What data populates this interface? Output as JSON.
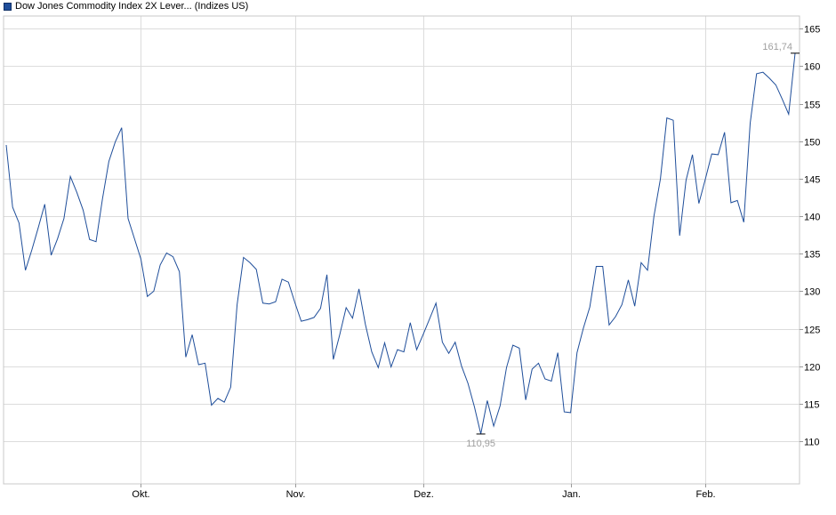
{
  "legend": {
    "label": "Dow Jones Commodity Index 2X Lever... (Indizes US)",
    "color": "#1f4e9a"
  },
  "chart_data": {
    "type": "line",
    "series": [
      {
        "name": "Dow Jones Commodity Index 2X Lever... (Indizes US)",
        "color": "#1f4e9a",
        "values": [
          149.5,
          141.2,
          139.1,
          132.8,
          135.5,
          138.5,
          141.6,
          134.8,
          137.0,
          139.7,
          145.3,
          143.2,
          140.8,
          136.9,
          136.6,
          142.3,
          147.3,
          149.9,
          151.8,
          139.7,
          137.0,
          134.3,
          129.3,
          130.0,
          133.5,
          135.1,
          134.6,
          132.6,
          121.2,
          124.2,
          120.2,
          120.4,
          114.8,
          115.7,
          115.2,
          117.2,
          128.2,
          134.5,
          133.8,
          132.9,
          128.4,
          128.3,
          128.6,
          131.6,
          131.2,
          128.5,
          126.0,
          126.2,
          126.5,
          127.7,
          132.2,
          120.9,
          124.2,
          127.8,
          126.4,
          130.3,
          125.6,
          121.9,
          119.8,
          123.1,
          119.9,
          122.2,
          121.9,
          125.8,
          122.2,
          124.2,
          126.3,
          128.4,
          123.2,
          121.7,
          123.2,
          120.0,
          117.7,
          114.6,
          110.95,
          115.4,
          112.0,
          114.7,
          119.8,
          122.8,
          122.4,
          115.5,
          119.6,
          120.4,
          118.3,
          118.0,
          121.8,
          113.9,
          113.8,
          121.8,
          125.1,
          127.9,
          133.3,
          133.3,
          125.5,
          126.6,
          128.2,
          131.5,
          128.0,
          133.8,
          132.8,
          140.0,
          145.0,
          153.1,
          152.8,
          137.4,
          144.8,
          148.2,
          141.7,
          144.9,
          148.3,
          148.2,
          151.2,
          141.8,
          142.1,
          139.2,
          152.4,
          159.0,
          159.2,
          158.4,
          157.5,
          155.6,
          153.6,
          161.74
        ]
      }
    ],
    "x_ticks": [
      "Okt.",
      "Nov.",
      "Dez.",
      "Jan.",
      "Feb."
    ],
    "x_tick_index": [
      21,
      45,
      65,
      88,
      109
    ],
    "y_ticks": [
      110,
      115,
      120,
      125,
      130,
      135,
      140,
      145,
      150,
      155,
      160,
      165
    ],
    "ylim": [
      104.3,
      166.7
    ],
    "annotations": {
      "max": {
        "label": "161,74",
        "value": 161.74
      },
      "min": {
        "label": "110,95",
        "value": 110.95
      }
    },
    "grid": true
  }
}
